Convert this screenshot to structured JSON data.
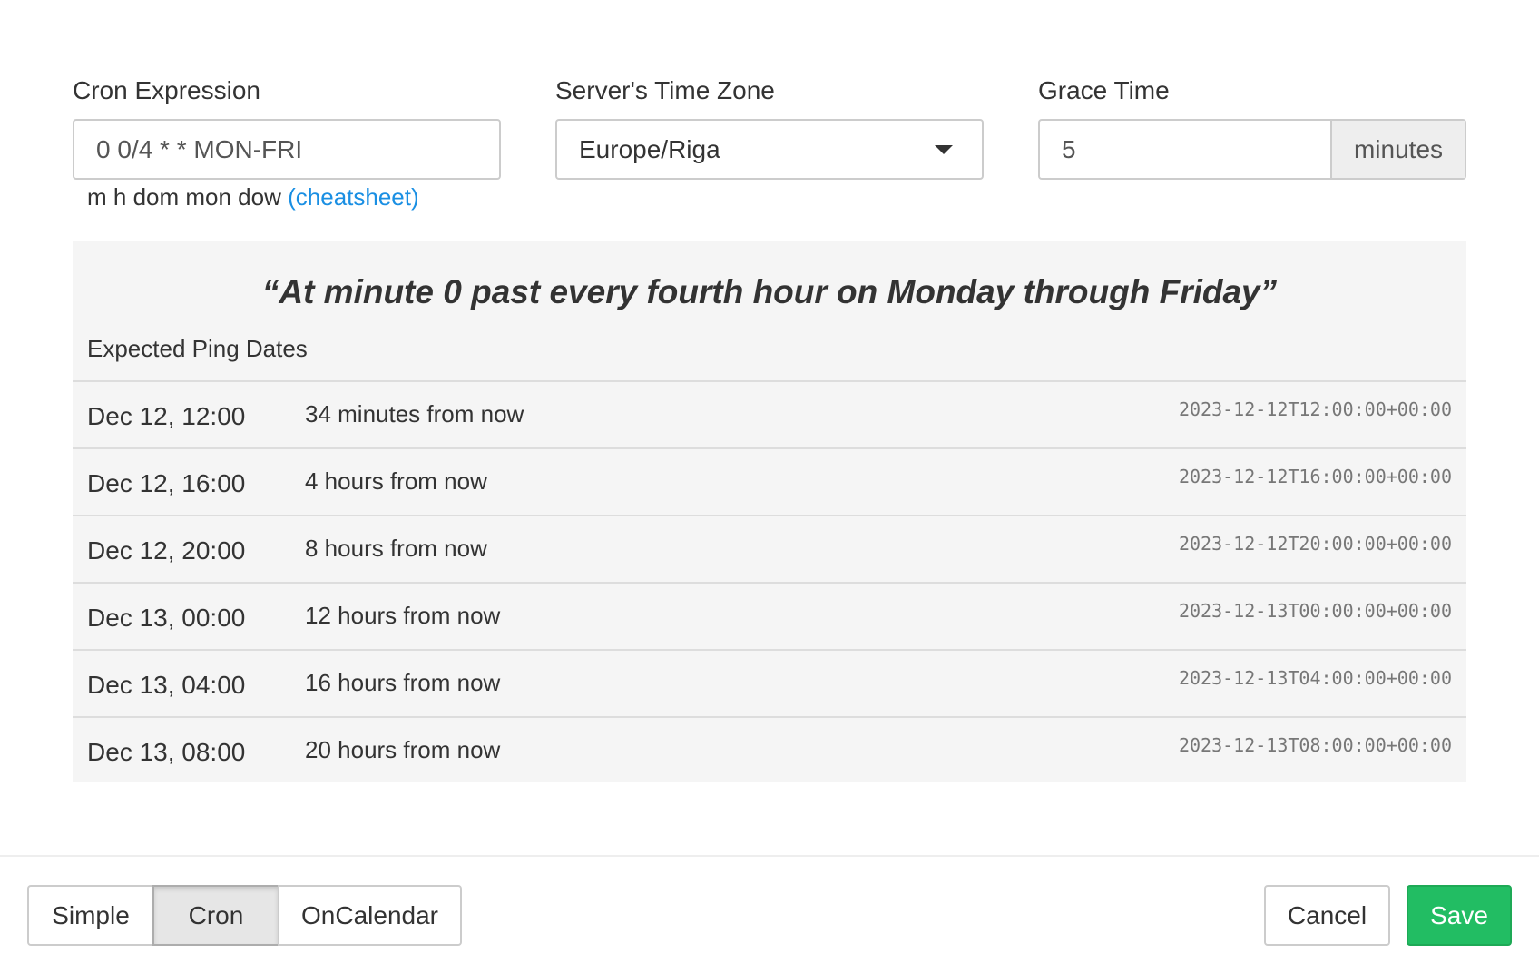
{
  "fields": {
    "cron": {
      "label": "Cron Expression",
      "value": "0 0/4 * * MON-FRI",
      "help": "m h dom mon dow",
      "help_link": "(cheatsheet)"
    },
    "tz": {
      "label": "Server's Time Zone",
      "value": "Europe/Riga"
    },
    "grace": {
      "label": "Grace Time",
      "value": "5",
      "unit": "minutes"
    }
  },
  "preview": {
    "description": "“At minute 0 past every fourth hour on Monday through Friday”",
    "heading": "Expected Ping Dates",
    "rows": [
      {
        "date": "Dec 12, 12:00",
        "relative": "34 minutes from now",
        "iso": "2023-12-12T12:00:00+00:00"
      },
      {
        "date": "Dec 12, 16:00",
        "relative": "4 hours from now",
        "iso": "2023-12-12T16:00:00+00:00"
      },
      {
        "date": "Dec 12, 20:00",
        "relative": "8 hours from now",
        "iso": "2023-12-12T20:00:00+00:00"
      },
      {
        "date": "Dec 13, 00:00",
        "relative": "12 hours from now",
        "iso": "2023-12-13T00:00:00+00:00"
      },
      {
        "date": "Dec 13, 04:00",
        "relative": "16 hours from now",
        "iso": "2023-12-13T04:00:00+00:00"
      },
      {
        "date": "Dec 13, 08:00",
        "relative": "20 hours from now",
        "iso": "2023-12-13T08:00:00+00:00"
      }
    ]
  },
  "footer": {
    "modes": [
      "Simple",
      "Cron",
      "OnCalendar"
    ],
    "active_mode": "Cron",
    "cancel": "Cancel",
    "save": "Save"
  },
  "colors": {
    "accent_link": "#1a8fe3",
    "save": "#22bd63"
  }
}
